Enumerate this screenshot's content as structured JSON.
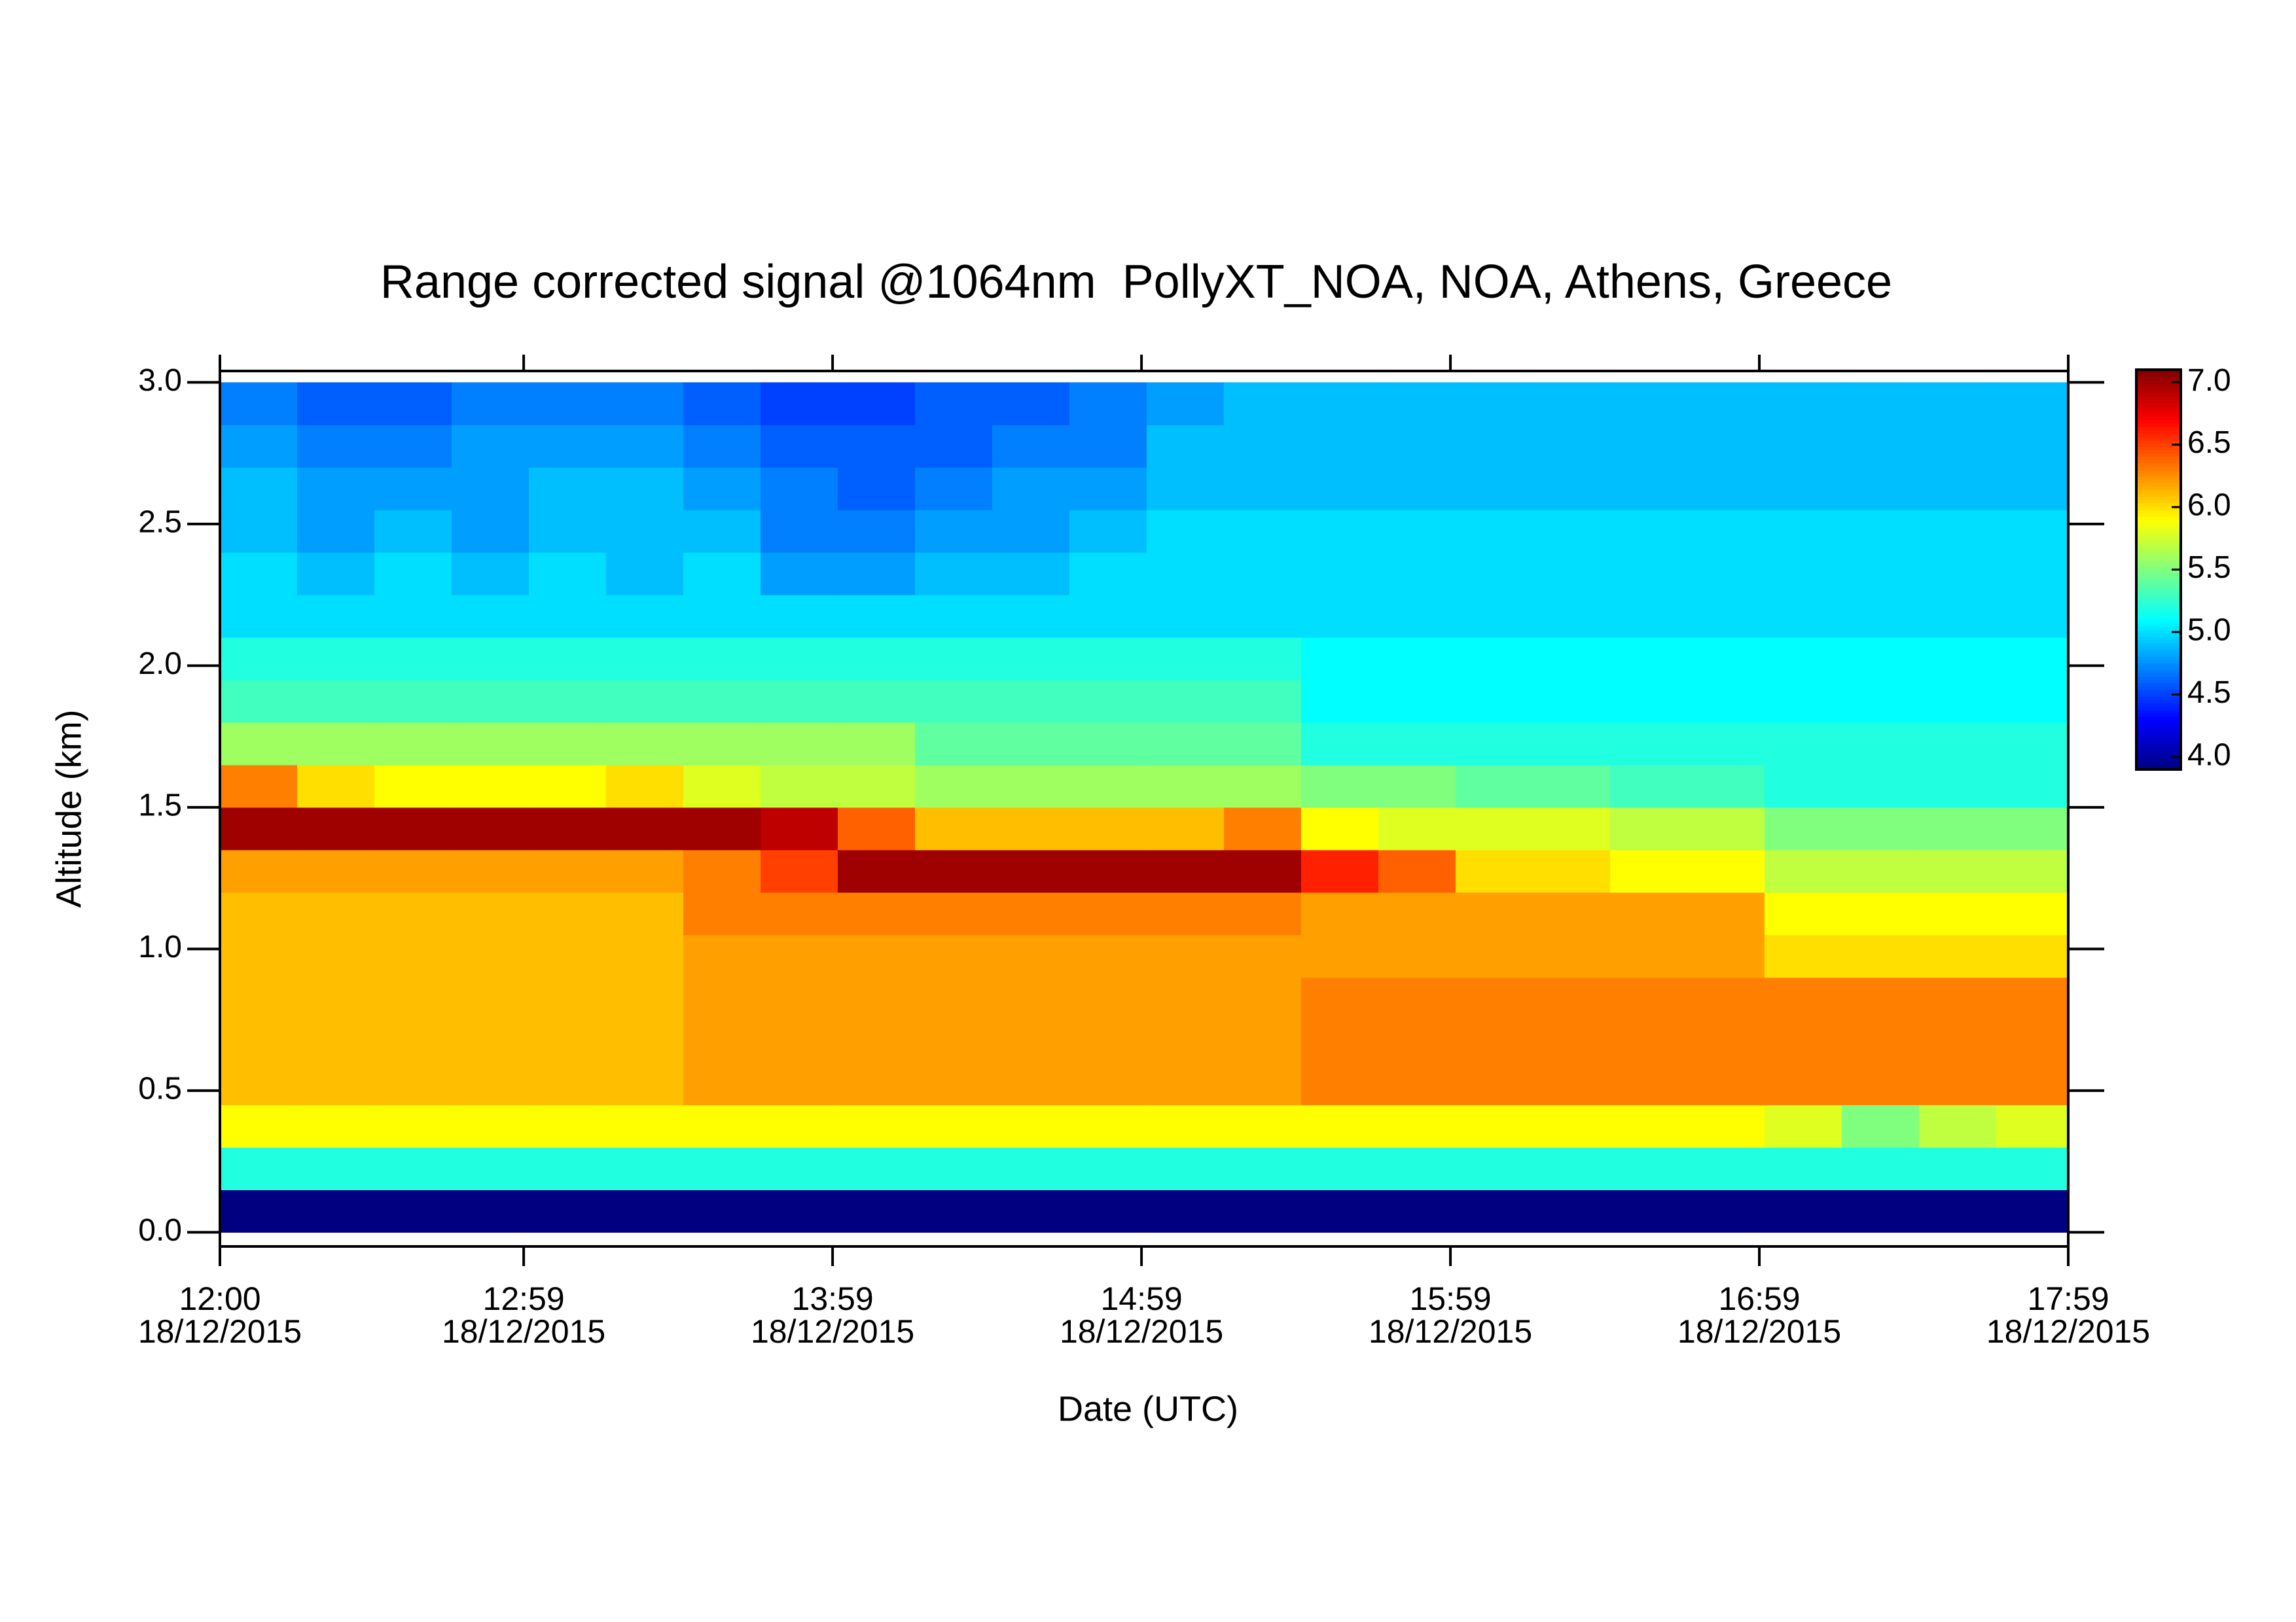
{
  "chart_data": {
    "type": "heatmap",
    "title": "Range corrected signal @1064nm  PollyXT_NOA, NOA, Athens, Greece",
    "x_label": "Date (UTC)",
    "y_label": "Altitude (km)",
    "x": [
      "12:00",
      "12:15",
      "12:30",
      "12:45",
      "13:00",
      "13:15",
      "13:30",
      "13:45",
      "14:00",
      "14:15",
      "14:30",
      "14:45",
      "15:00",
      "15:15",
      "15:30",
      "15:45",
      "16:00",
      "16:15",
      "16:30",
      "16:45",
      "17:00",
      "17:15",
      "17:30",
      "17:45"
    ],
    "y_bins": [
      0,
      0.15,
      0.3,
      0.45,
      0.6,
      0.75,
      0.9,
      1.05,
      1.2,
      1.35,
      1.5,
      1.65,
      1.8,
      1.95,
      2.1,
      2.25,
      2.4,
      2.55,
      2.7,
      2.85,
      3.0
    ],
    "z": [
      [
        3.9,
        3.9,
        3.9,
        3.9,
        3.9,
        3.9,
        3.9,
        3.9,
        3.9,
        3.9,
        3.9,
        3.9,
        3.9,
        3.9,
        3.9,
        3.9,
        3.9,
        3.9,
        3.9,
        3.9,
        3.9,
        3.9,
        3.9,
        3.9
      ],
      [
        5.2,
        5.2,
        5.2,
        5.2,
        5.2,
        5.2,
        5.2,
        5.2,
        5.2,
        5.2,
        5.2,
        5.2,
        5.2,
        5.2,
        5.2,
        5.2,
        5.2,
        5.2,
        5.2,
        5.2,
        5.2,
        5.2,
        5.2,
        5.2
      ],
      [
        5.9,
        5.9,
        5.9,
        5.9,
        5.9,
        5.9,
        5.9,
        5.9,
        5.9,
        5.9,
        5.9,
        5.9,
        5.9,
        5.9,
        5.9,
        5.9,
        5.9,
        5.9,
        5.9,
        5.9,
        5.8,
        5.5,
        5.7,
        5.8
      ],
      [
        6.1,
        6.1,
        6.1,
        6.1,
        6.1,
        6.1,
        6.2,
        6.2,
        6.2,
        6.2,
        6.2,
        6.2,
        6.2,
        6.2,
        6.3,
        6.3,
        6.3,
        6.3,
        6.3,
        6.3,
        6.3,
        6.3,
        6.3,
        6.3
      ],
      [
        6.1,
        6.1,
        6.1,
        6.1,
        6.1,
        6.1,
        6.2,
        6.2,
        6.2,
        6.2,
        6.2,
        6.2,
        6.2,
        6.2,
        6.3,
        6.3,
        6.3,
        6.3,
        6.3,
        6.3,
        6.3,
        6.3,
        6.3,
        6.3
      ],
      [
        6.1,
        6.1,
        6.1,
        6.1,
        6.1,
        6.1,
        6.2,
        6.2,
        6.2,
        6.2,
        6.2,
        6.2,
        6.2,
        6.2,
        6.3,
        6.3,
        6.3,
        6.3,
        6.3,
        6.3,
        6.3,
        6.3,
        6.3,
        6.3
      ],
      [
        6.1,
        6.1,
        6.1,
        6.1,
        6.1,
        6.1,
        6.2,
        6.2,
        6.2,
        6.2,
        6.2,
        6.2,
        6.2,
        6.2,
        6.2,
        6.2,
        6.2,
        6.2,
        6.2,
        6.2,
        6.0,
        6.0,
        6.0,
        6.0
      ],
      [
        6.1,
        6.1,
        6.1,
        6.1,
        6.1,
        6.1,
        6.3,
        6.3,
        6.3,
        6.3,
        6.3,
        6.3,
        6.3,
        6.3,
        6.2,
        6.2,
        6.2,
        6.2,
        6.2,
        6.2,
        5.9,
        5.9,
        5.9,
        5.9
      ],
      [
        6.2,
        6.2,
        6.2,
        6.2,
        6.2,
        6.2,
        6.3,
        6.5,
        7.0,
        7.0,
        7.0,
        7.0,
        7.0,
        7.0,
        6.6,
        6.4,
        6.0,
        6.0,
        5.9,
        5.9,
        5.7,
        5.7,
        5.7,
        5.7
      ],
      [
        7.0,
        7.0,
        7.0,
        7.0,
        7.0,
        7.0,
        7.0,
        6.9,
        6.4,
        6.1,
        6.1,
        6.1,
        6.1,
        6.3,
        5.9,
        5.8,
        5.8,
        5.8,
        5.7,
        5.7,
        5.5,
        5.5,
        5.5,
        5.5
      ],
      [
        6.3,
        6.0,
        5.9,
        5.9,
        5.9,
        6.0,
        5.8,
        5.7,
        5.7,
        5.6,
        5.6,
        5.6,
        5.6,
        5.6,
        5.5,
        5.5,
        5.4,
        5.4,
        5.3,
        5.3,
        5.2,
        5.2,
        5.2,
        5.2
      ],
      [
        5.6,
        5.6,
        5.6,
        5.6,
        5.6,
        5.6,
        5.6,
        5.6,
        5.6,
        5.4,
        5.4,
        5.4,
        5.4,
        5.4,
        5.2,
        5.2,
        5.2,
        5.2,
        5.2,
        5.2,
        5.2,
        5.2,
        5.2,
        5.2
      ],
      [
        5.3,
        5.3,
        5.3,
        5.3,
        5.3,
        5.3,
        5.3,
        5.3,
        5.3,
        5.3,
        5.3,
        5.3,
        5.3,
        5.3,
        5.1,
        5.1,
        5.1,
        5.1,
        5.1,
        5.1,
        5.1,
        5.1,
        5.1,
        5.1
      ],
      [
        5.2,
        5.2,
        5.2,
        5.2,
        5.2,
        5.2,
        5.2,
        5.2,
        5.2,
        5.2,
        5.2,
        5.2,
        5.2,
        5.2,
        5.1,
        5.1,
        5.1,
        5.1,
        5.1,
        5.1,
        5.1,
        5.1,
        5.1,
        5.1
      ],
      [
        5.0,
        5.0,
        5.0,
        5.0,
        5.0,
        5.0,
        5.0,
        5.0,
        5.0,
        5.0,
        5.0,
        5.0,
        5.0,
        5.0,
        5.0,
        5.0,
        5.0,
        5.0,
        5.0,
        5.0,
        5.0,
        5.0,
        5.0,
        5.0
      ],
      [
        5.0,
        4.9,
        5.0,
        4.9,
        5.0,
        4.9,
        5.0,
        4.8,
        4.8,
        4.9,
        4.9,
        5.0,
        5.0,
        5.0,
        5.0,
        5.0,
        5.0,
        5.0,
        5.0,
        5.0,
        5.0,
        5.0,
        5.0,
        5.0
      ],
      [
        4.9,
        4.8,
        4.9,
        4.8,
        4.9,
        4.9,
        4.9,
        4.7,
        4.7,
        4.8,
        4.8,
        4.9,
        5.0,
        5.0,
        5.0,
        5.0,
        5.0,
        5.0,
        5.0,
        5.0,
        5.0,
        5.0,
        5.0,
        5.0
      ],
      [
        4.9,
        4.8,
        4.8,
        4.8,
        4.9,
        4.9,
        4.8,
        4.7,
        4.6,
        4.7,
        4.8,
        4.8,
        4.9,
        4.9,
        4.9,
        4.9,
        4.9,
        4.9,
        4.9,
        4.9,
        4.9,
        4.9,
        4.9,
        4.9
      ],
      [
        4.8,
        4.7,
        4.7,
        4.8,
        4.8,
        4.8,
        4.7,
        4.6,
        4.6,
        4.6,
        4.7,
        4.7,
        4.9,
        4.9,
        4.9,
        4.9,
        4.9,
        4.9,
        4.9,
        4.9,
        4.9,
        4.9,
        4.9,
        4.9
      ],
      [
        4.7,
        4.6,
        4.6,
        4.7,
        4.7,
        4.7,
        4.6,
        4.5,
        4.5,
        4.6,
        4.6,
        4.7,
        4.8,
        4.9,
        4.9,
        4.9,
        4.9,
        4.9,
        4.9,
        4.9,
        4.9,
        4.9,
        4.9,
        4.9
      ]
    ],
    "colormap": "jet",
    "xlim": [
      "12:00",
      "17:59"
    ],
    "xticks": [
      {
        "value": "12:00",
        "date": "18/12/2015"
      },
      {
        "value": "12:59",
        "date": "18/12/2015"
      },
      {
        "value": "13:59",
        "date": "18/12/2015"
      },
      {
        "value": "14:59",
        "date": "18/12/2015"
      },
      {
        "value": "15:59",
        "date": "18/12/2015"
      },
      {
        "value": "16:59",
        "date": "18/12/2015"
      },
      {
        "value": "17:59",
        "date": "18/12/2015"
      }
    ],
    "ylim": [
      -0.05,
      3.04
    ],
    "yticks": [
      {
        "value": 0,
        "label": "0.0"
      },
      0.5,
      {
        "value": 1,
        "label": "1.0"
      },
      1.5,
      {
        "value": 2,
        "label": "2.0"
      },
      2.5,
      {
        "value": 3,
        "label": "3.0"
      }
    ],
    "zlim": [
      3.9,
      7.1
    ],
    "zticks": [
      {
        "value": 4,
        "label": "4.0"
      },
      4.5,
      {
        "value": 5,
        "label": "5.0"
      },
      5.5,
      {
        "value": 6,
        "label": "6.0"
      },
      6.5,
      {
        "value": 7,
        "label": "7.0"
      }
    ]
  }
}
